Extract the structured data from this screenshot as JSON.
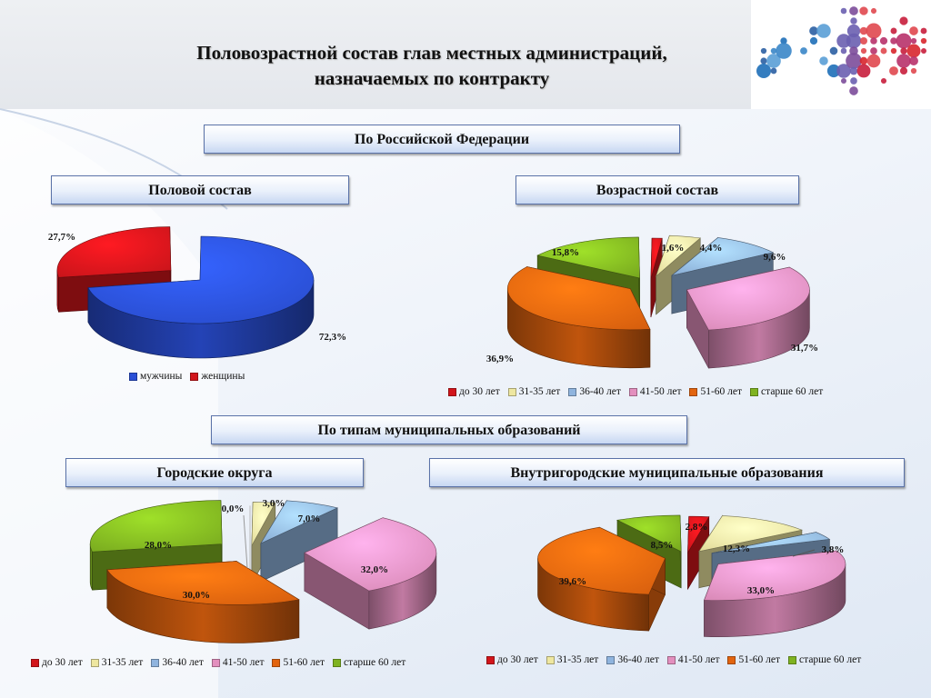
{
  "header": {
    "title_line1": "Половозрастной состав  глав местных администраций,",
    "title_line2": "назначаемых по контракту"
  },
  "sections": {
    "rf": "По Российской Федерации",
    "gender": "Половой состав",
    "age": "Возрастной состав",
    "mun_types": "По типам муниципальных образований",
    "urban": "Городские округа",
    "intracity": "Внутригородские муниципальные образования"
  },
  "colors": {
    "men": "#2a4fd6",
    "women": "#d2151b",
    "a1": "#d2151b",
    "a2": "#eee7a0",
    "a3": "#8fb4de",
    "a4": "#e38fbe",
    "a5": "#e2640f",
    "a6": "#7fb321"
  },
  "chart_data": [
    {
      "id": "gender",
      "type": "pie",
      "legend": [
        "мужчины",
        "женщины"
      ],
      "values": [
        72.3,
        27.7
      ],
      "labels": [
        "72,3%",
        "27,7%"
      ]
    },
    {
      "id": "age_rf",
      "type": "pie",
      "legend": [
        "до 30 лет",
        "31-35 лет",
        "36-40 лет",
        "41-50 лет",
        "51-60 лет",
        "старше 60 лет"
      ],
      "values": [
        1.6,
        4.4,
        9.6,
        31.7,
        36.9,
        15.8
      ],
      "labels": [
        "1,6%",
        "4,4%",
        "9,6%",
        "31,7%",
        "36,9%",
        "15,8%"
      ]
    },
    {
      "id": "urban",
      "type": "pie",
      "legend": [
        "до 30 лет",
        "31-35 лет",
        "36-40 лет",
        "41-50 лет",
        "51-60 лет",
        "старше 60 лет"
      ],
      "values": [
        0.0,
        3.0,
        7.0,
        32.0,
        30.0,
        28.0
      ],
      "labels": [
        "0,0%",
        "3,0%",
        "7,0%",
        "32,0%",
        "30,0%",
        "28,0%"
      ]
    },
    {
      "id": "intracity",
      "type": "pie",
      "legend": [
        "до 30 лет",
        "31-35 лет",
        "36-40 лет",
        "41-50 лет",
        "51-60 лет",
        "старше 60 лет"
      ],
      "values": [
        2.8,
        12.3,
        3.8,
        33.0,
        39.6,
        8.5
      ],
      "labels": [
        "2,8%",
        "12,3%",
        "3,8%",
        "33,0%",
        "39,6%",
        "8,5%"
      ]
    }
  ]
}
